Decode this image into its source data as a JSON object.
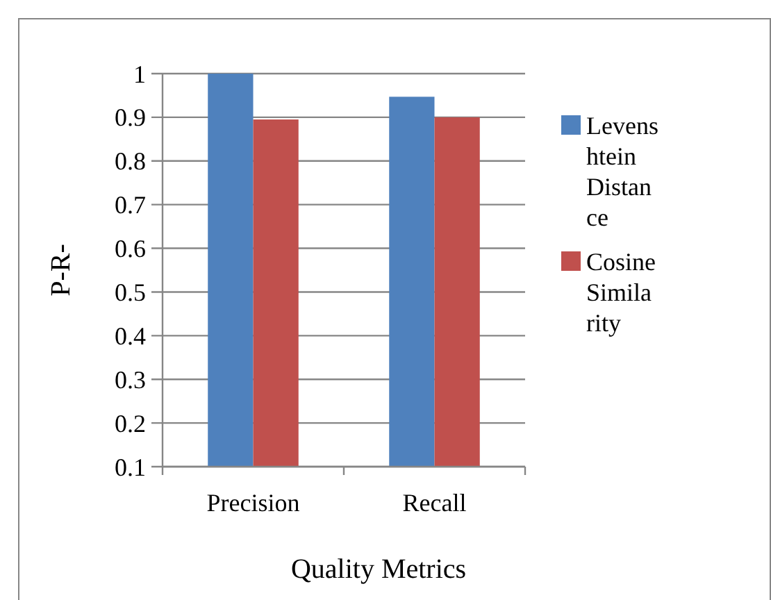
{
  "chart_data": {
    "type": "bar",
    "xlabel": "Quality Metrics",
    "ylabel": "P-R-",
    "categories": [
      "Precision",
      "Recall"
    ],
    "series": [
      {
        "name": "Levenshtein Distance",
        "color": "#4f81bd",
        "values": [
          1.0,
          0.947
        ]
      },
      {
        "name": "Cosine Similarity",
        "color": "#c0504d",
        "values": [
          0.895,
          0.9
        ]
      }
    ],
    "ylim": [
      0.1,
      1
    ],
    "yticks": [
      0.1,
      0.2,
      0.3,
      0.4,
      0.5,
      0.6,
      0.7,
      0.8,
      0.9,
      1
    ],
    "grid": "y",
    "legend": "right"
  }
}
